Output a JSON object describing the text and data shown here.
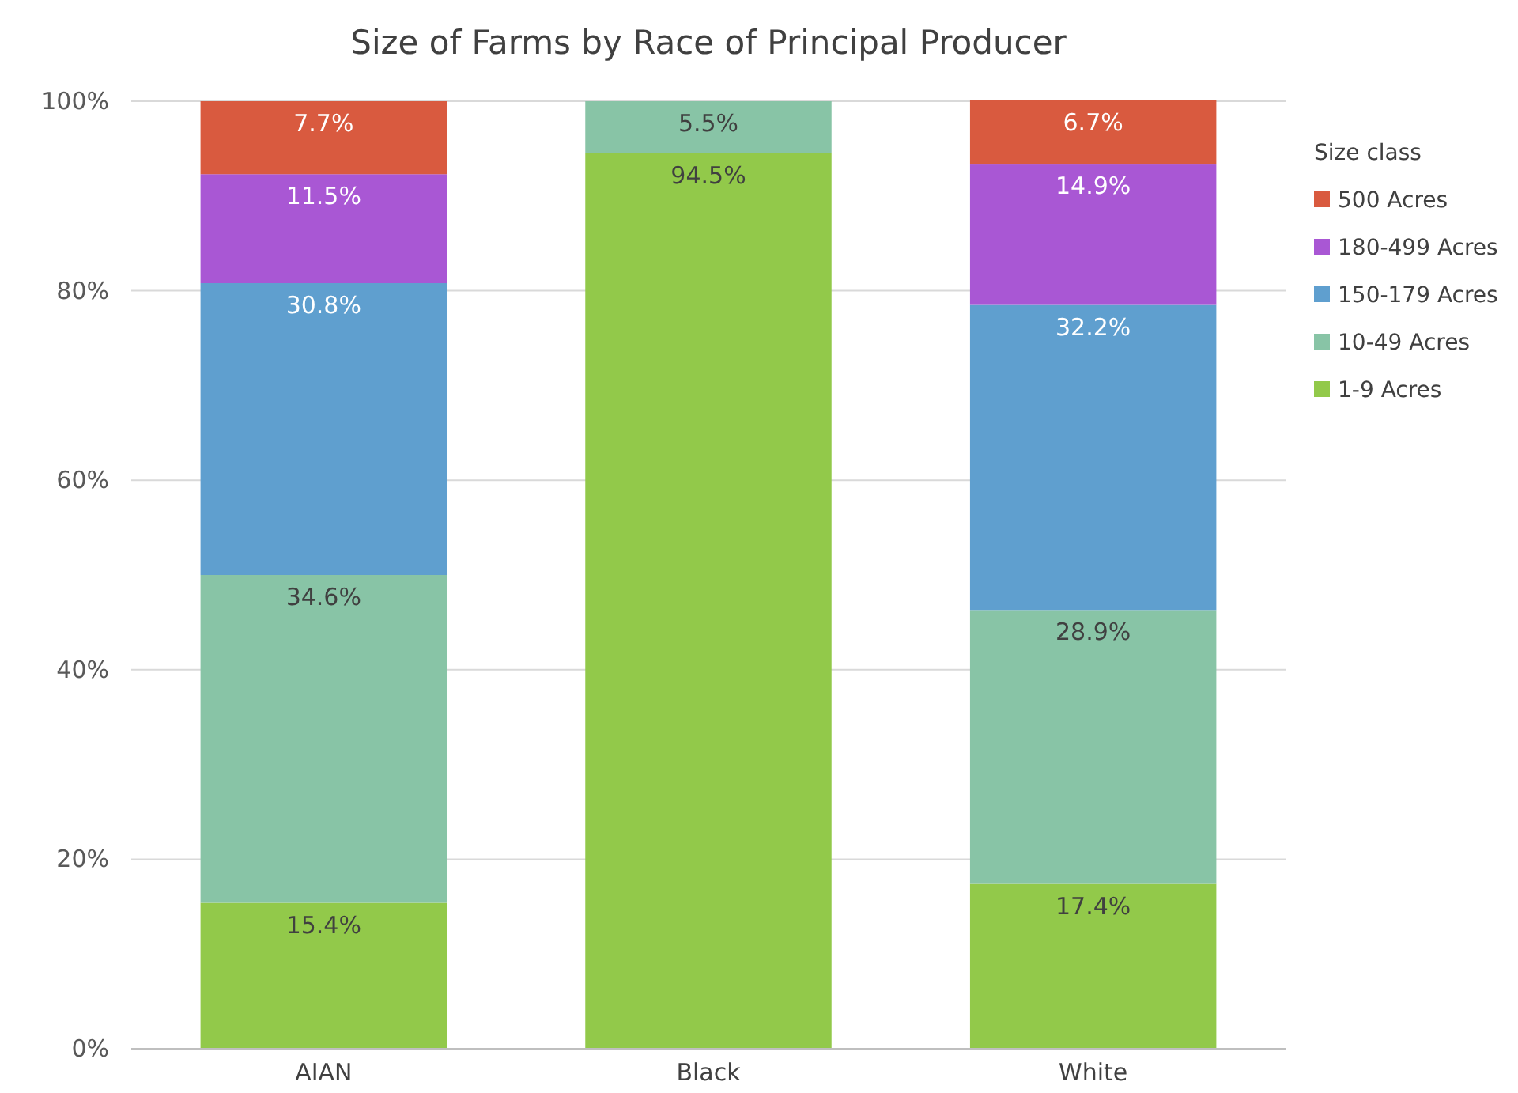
{
  "chart_data": {
    "type": "bar",
    "title": "Size of Farms by Race of Principal Producer",
    "legend_title": "Size class",
    "categories": [
      "AIAN",
      "Black",
      "White"
    ],
    "stacked": true,
    "legend": "right",
    "grid": "y",
    "ylim": [
      0,
      100
    ],
    "yticks": [
      {
        "value": 0,
        "label": "0%"
      },
      {
        "value": 20,
        "label": "20%"
      },
      {
        "value": 40,
        "label": "40%"
      },
      {
        "value": 60,
        "label": "60%"
      },
      {
        "value": 80,
        "label": "80%"
      },
      {
        "value": 100,
        "label": "100%"
      }
    ],
    "series": [
      {
        "name": "1-9 Acres",
        "color": "#92c94a",
        "values": [
          15.4,
          94.5,
          17.4
        ],
        "value_labels": [
          "15.4%",
          "94.5%",
          "17.4%"
        ]
      },
      {
        "name": "10-49 Acres",
        "color": "#88c4a6",
        "values": [
          34.6,
          5.5,
          28.9
        ],
        "value_labels": [
          "34.6%",
          "5.5%",
          "28.9%"
        ]
      },
      {
        "name": "150-179 Acres",
        "color": "#5f9fcf",
        "values": [
          30.8,
          null,
          32.2
        ],
        "value_labels": [
          "30.8%",
          null,
          "32.2%"
        ]
      },
      {
        "name": "180-499 Acres",
        "color": "#a957d4",
        "values": [
          11.5,
          null,
          14.9
        ],
        "value_labels": [
          "11.5%",
          null,
          "14.9%"
        ]
      },
      {
        "name": "500 Acres",
        "color": "#d95a3f",
        "values": [
          7.7,
          null,
          6.7
        ],
        "value_labels": [
          "7.7%",
          null,
          "6.7%"
        ]
      }
    ]
  }
}
